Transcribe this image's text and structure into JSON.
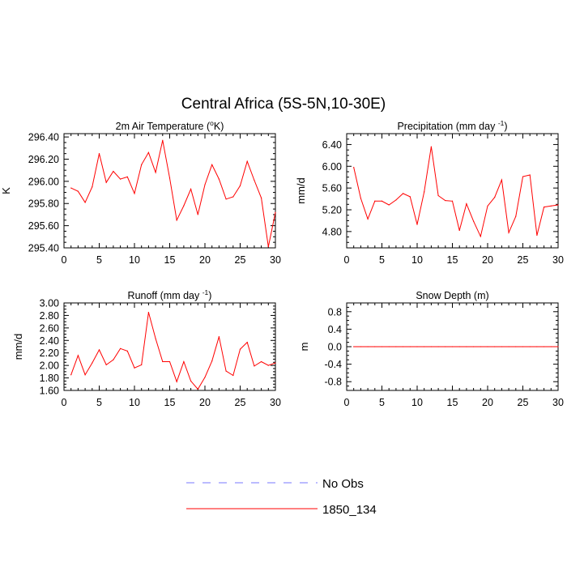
{
  "figure": {
    "title": "Central Africa (5S-5N,10-30E)"
  },
  "legend": {
    "items": [
      {
        "label": "No Obs",
        "color": "#7777ff",
        "style": "dashed"
      },
      {
        "label": "1850_134",
        "color": "#ff0000",
        "style": "solid"
      }
    ]
  },
  "chart_data": [
    {
      "type": "line",
      "title": "2m Air Temperature (°K)",
      "ylabel": "K",
      "xlim": [
        0,
        30
      ],
      "ylim": [
        295.4,
        296.43
      ],
      "xticks": [
        0,
        5,
        10,
        15,
        20,
        25,
        30
      ],
      "xtick_labels": [
        "0",
        "5",
        "10",
        "15",
        "20",
        "25",
        "30"
      ],
      "yticks": [
        295.4,
        295.6,
        295.8,
        296.0,
        296.2,
        296.4
      ],
      "ytick_labels": [
        "295.40",
        "295.60",
        "295.80",
        "296.00",
        "296.20",
        "296.40"
      ],
      "x": [
        1,
        2,
        3,
        4,
        5,
        6,
        7,
        8,
        9,
        10,
        11,
        12,
        13,
        14,
        15,
        16,
        17,
        18,
        19,
        20,
        21,
        22,
        23,
        24,
        25,
        26,
        27,
        28,
        29,
        30
      ],
      "series": [
        {
          "name": "1850_134",
          "color": "#ff0000",
          "values": [
            295.94,
            295.91,
            295.81,
            295.95,
            296.25,
            295.99,
            296.09,
            296.02,
            296.04,
            295.89,
            296.15,
            296.26,
            296.08,
            296.37,
            296.03,
            295.65,
            295.78,
            295.93,
            295.7,
            295.97,
            296.15,
            296.02,
            295.84,
            295.86,
            295.96,
            296.18,
            296.01,
            295.85,
            295.41,
            295.72
          ]
        }
      ]
    },
    {
      "type": "line",
      "title": "Precipitation (mm day",
      "title_sup": "-1",
      "title_end": ")",
      "ylabel": "mm/d",
      "xlim": [
        0,
        30
      ],
      "ylim": [
        4.5,
        6.6
      ],
      "xticks": [
        0,
        5,
        10,
        15,
        20,
        25,
        30
      ],
      "xtick_labels": [
        "0",
        "5",
        "10",
        "15",
        "20",
        "25",
        "30"
      ],
      "yticks": [
        4.8,
        5.2,
        5.6,
        6.0,
        6.4
      ],
      "ytick_labels": [
        "4.80",
        "5.20",
        "5.60",
        "6.00",
        "6.40"
      ],
      "x": [
        1,
        2,
        3,
        4,
        5,
        6,
        7,
        8,
        9,
        10,
        11,
        12,
        13,
        14,
        15,
        16,
        17,
        18,
        19,
        20,
        21,
        22,
        23,
        24,
        25,
        26,
        27,
        28,
        29,
        30
      ],
      "series": [
        {
          "name": "1850_134",
          "color": "#ff0000",
          "values": [
            5.98,
            5.41,
            5.03,
            5.36,
            5.36,
            5.29,
            5.38,
            5.5,
            5.44,
            4.93,
            5.53,
            6.36,
            5.46,
            5.37,
            5.36,
            4.82,
            5.31,
            4.99,
            4.71,
            5.27,
            5.43,
            5.75,
            4.78,
            5.08,
            5.81,
            5.84,
            4.73,
            5.25,
            5.27,
            5.29
          ]
        }
      ]
    },
    {
      "type": "line",
      "title": "Runoff (mm day",
      "title_sup": "-1",
      "title_end": ")",
      "ylabel": "mm/d",
      "xlim": [
        0,
        30
      ],
      "ylim": [
        1.6,
        3.0
      ],
      "xticks": [
        0,
        5,
        10,
        15,
        20,
        25,
        30
      ],
      "xtick_labels": [
        "0",
        "5",
        "10",
        "15",
        "20",
        "25",
        "30"
      ],
      "yticks": [
        1.6,
        1.8,
        2.0,
        2.2,
        2.4,
        2.6,
        2.8,
        3.0
      ],
      "ytick_labels": [
        "1.60",
        "1.80",
        "2.00",
        "2.20",
        "2.40",
        "2.60",
        "2.80",
        "3.00"
      ],
      "x": [
        1,
        2,
        3,
        4,
        5,
        6,
        7,
        8,
        9,
        10,
        11,
        12,
        13,
        14,
        15,
        16,
        17,
        18,
        19,
        20,
        21,
        22,
        23,
        24,
        25,
        26,
        27,
        28,
        29,
        30
      ],
      "series": [
        {
          "name": "1850_134",
          "color": "#ff0000",
          "values": [
            1.85,
            2.16,
            1.85,
            2.04,
            2.25,
            2.01,
            2.09,
            2.27,
            2.23,
            1.96,
            2.01,
            2.85,
            2.43,
            2.06,
            2.06,
            1.74,
            2.06,
            1.75,
            1.62,
            1.81,
            2.07,
            2.46,
            1.91,
            1.84,
            2.26,
            2.37,
            1.99,
            2.06,
            2.0,
            2.04
          ]
        }
      ]
    },
    {
      "type": "line",
      "title": "Snow Depth (m)",
      "ylabel": "m",
      "xlim": [
        0,
        30
      ],
      "ylim": [
        -1.0,
        1.0
      ],
      "xticks": [
        0,
        5,
        10,
        15,
        20,
        25,
        30
      ],
      "xtick_labels": [
        "0",
        "5",
        "10",
        "15",
        "20",
        "25",
        "30"
      ],
      "yticks": [
        -0.8,
        -0.4,
        0.0,
        0.4,
        0.8
      ],
      "ytick_labels": [
        "-0.8",
        "-0.4",
        "0.0",
        "0.4",
        "0.8"
      ],
      "x": [
        1,
        2,
        3,
        4,
        5,
        6,
        7,
        8,
        9,
        10,
        11,
        12,
        13,
        14,
        15,
        16,
        17,
        18,
        19,
        20,
        21,
        22,
        23,
        24,
        25,
        26,
        27,
        28,
        29,
        30
      ],
      "series": [
        {
          "name": "1850_134",
          "color": "#ff0000",
          "values": [
            0,
            0,
            0,
            0,
            0,
            0,
            0,
            0,
            0,
            0,
            0,
            0,
            0,
            0,
            0,
            0,
            0,
            0,
            0,
            0,
            0,
            0,
            0,
            0,
            0,
            0,
            0,
            0,
            0,
            0
          ]
        }
      ]
    }
  ]
}
